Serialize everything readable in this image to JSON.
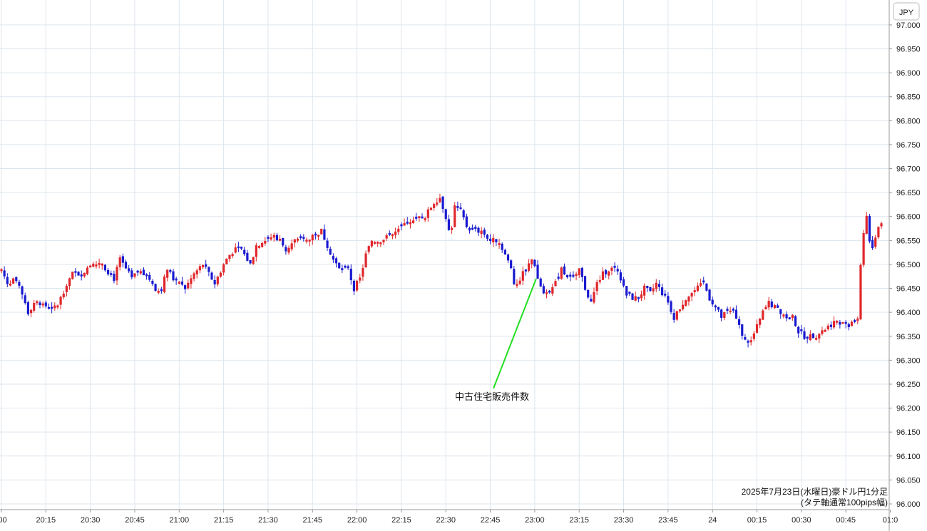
{
  "chart_data": {
    "type": "candlestick",
    "currency_label": "JPY",
    "info_line1": "2025年7月23日(水曜日)豪ドル円1分足",
    "info_line2": "(タテ軸通常100pips幅)",
    "annotation": {
      "label": "中古住宅販売件数",
      "time": "23:00",
      "price": 96.47
    },
    "ylim": [
      96.0,
      97.04
    ],
    "y_ticks": [
      97.0,
      96.95,
      96.9,
      96.85,
      96.8,
      96.75,
      96.7,
      96.65,
      96.6,
      96.55,
      96.5,
      96.45,
      96.4,
      96.35,
      96.3,
      96.25,
      96.2,
      96.15,
      96.1,
      96.05,
      96.0
    ],
    "x_ticks": [
      {
        "minute": 0,
        "label": ":00"
      },
      {
        "minute": 15,
        "label": "20:15"
      },
      {
        "minute": 30,
        "label": "20:30"
      },
      {
        "minute": 45,
        "label": "20:45"
      },
      {
        "minute": 60,
        "label": "21:00"
      },
      {
        "minute": 75,
        "label": "21:15"
      },
      {
        "minute": 90,
        "label": "21:30"
      },
      {
        "minute": 105,
        "label": "21:45"
      },
      {
        "minute": 120,
        "label": "22:00"
      },
      {
        "minute": 135,
        "label": "22:15"
      },
      {
        "minute": 150,
        "label": "22:30"
      },
      {
        "minute": 165,
        "label": "22:45"
      },
      {
        "minute": 180,
        "label": "23:00"
      },
      {
        "minute": 195,
        "label": "23:15"
      },
      {
        "minute": 210,
        "label": "23:30"
      },
      {
        "minute": 225,
        "label": "23:45"
      },
      {
        "minute": 240,
        "label": "24"
      },
      {
        "minute": 255,
        "label": "00:15"
      },
      {
        "minute": 270,
        "label": "00:30"
      },
      {
        "minute": 285,
        "label": "00:45"
      },
      {
        "minute": 300,
        "label": "01:0"
      }
    ],
    "candle_colors": {
      "up": "#e0262b",
      "down": "#1a1ad0"
    },
    "grid": true,
    "anchors": [
      [
        0,
        96.49
      ],
      [
        2,
        96.46
      ],
      [
        4,
        96.47
      ],
      [
        6,
        96.45
      ],
      [
        8,
        96.42
      ],
      [
        9,
        96.4
      ],
      [
        11,
        96.42
      ],
      [
        13,
        96.42
      ],
      [
        16,
        96.41
      ],
      [
        18,
        96.41
      ],
      [
        20,
        96.43
      ],
      [
        22,
        96.46
      ],
      [
        24,
        96.48
      ],
      [
        27,
        96.48
      ],
      [
        30,
        96.5
      ],
      [
        34,
        96.5
      ],
      [
        38,
        96.47
      ],
      [
        40,
        96.51
      ],
      [
        42,
        96.49
      ],
      [
        44,
        96.47
      ],
      [
        47,
        96.49
      ],
      [
        50,
        96.47
      ],
      [
        52,
        96.44
      ],
      [
        54,
        96.45
      ],
      [
        56,
        96.49
      ],
      [
        58,
        96.47
      ],
      [
        60,
        96.46
      ],
      [
        62,
        96.45
      ],
      [
        65,
        96.48
      ],
      [
        68,
        96.5
      ],
      [
        70,
        96.48
      ],
      [
        72,
        96.46
      ],
      [
        75,
        96.5
      ],
      [
        77,
        96.52
      ],
      [
        80,
        96.54
      ],
      [
        82,
        96.52
      ],
      [
        84,
        96.5
      ],
      [
        86,
        96.54
      ],
      [
        89,
        96.55
      ],
      [
        92,
        96.56
      ],
      [
        94,
        96.55
      ],
      [
        96,
        96.53
      ],
      [
        99,
        96.55
      ],
      [
        102,
        96.55
      ],
      [
        105,
        96.56
      ],
      [
        108,
        96.57
      ],
      [
        110,
        96.54
      ],
      [
        112,
        96.51
      ],
      [
        114,
        96.49
      ],
      [
        117,
        96.49
      ],
      [
        119,
        96.45
      ],
      [
        121,
        96.47
      ],
      [
        123,
        96.52
      ],
      [
        125,
        96.55
      ],
      [
        128,
        96.55
      ],
      [
        131,
        96.56
      ],
      [
        134,
        96.57
      ],
      [
        137,
        96.59
      ],
      [
        140,
        96.6
      ],
      [
        143,
        96.6
      ],
      [
        146,
        96.63
      ],
      [
        148,
        96.64
      ],
      [
        149,
        96.62
      ],
      [
        150,
        96.6
      ],
      [
        151,
        96.57
      ],
      [
        152,
        96.58
      ],
      [
        153,
        96.62
      ],
      [
        155,
        96.61
      ],
      [
        157,
        96.58
      ],
      [
        159,
        96.57
      ],
      [
        162,
        96.57
      ],
      [
        165,
        96.55
      ],
      [
        168,
        96.55
      ],
      [
        170,
        96.52
      ],
      [
        172,
        96.49
      ],
      [
        173,
        96.46
      ],
      [
        175,
        96.47
      ],
      [
        177,
        96.49
      ],
      [
        179,
        96.51
      ],
      [
        180,
        96.5
      ],
      [
        181,
        96.47
      ],
      [
        183,
        96.44
      ],
      [
        185,
        96.44
      ],
      [
        187,
        96.46
      ],
      [
        189,
        96.49
      ],
      [
        191,
        96.47
      ],
      [
        193,
        96.47
      ],
      [
        195,
        96.49
      ],
      [
        197,
        96.45
      ],
      [
        199,
        96.42
      ],
      [
        201,
        96.46
      ],
      [
        203,
        96.48
      ],
      [
        205,
        96.49
      ],
      [
        207,
        96.49
      ],
      [
        209,
        96.47
      ],
      [
        211,
        96.44
      ],
      [
        213,
        96.43
      ],
      [
        215,
        96.43
      ],
      [
        217,
        96.45
      ],
      [
        219,
        96.44
      ],
      [
        221,
        96.46
      ],
      [
        223,
        96.44
      ],
      [
        225,
        96.42
      ],
      [
        227,
        96.39
      ],
      [
        229,
        96.41
      ],
      [
        231,
        96.43
      ],
      [
        233,
        96.44
      ],
      [
        235,
        96.45
      ],
      [
        237,
        96.46
      ],
      [
        239,
        96.43
      ],
      [
        241,
        96.41
      ],
      [
        243,
        96.39
      ],
      [
        245,
        96.4
      ],
      [
        247,
        96.4
      ],
      [
        249,
        96.37
      ],
      [
        251,
        96.34
      ],
      [
        253,
        96.34
      ],
      [
        255,
        96.37
      ],
      [
        257,
        96.4
      ],
      [
        259,
        96.42
      ],
      [
        261,
        96.41
      ],
      [
        263,
        96.4
      ],
      [
        265,
        96.39
      ],
      [
        267,
        96.39
      ],
      [
        269,
        96.36
      ],
      [
        271,
        96.35
      ],
      [
        273,
        96.35
      ],
      [
        275,
        96.35
      ],
      [
        277,
        96.36
      ],
      [
        279,
        96.37
      ],
      [
        281,
        96.38
      ],
      [
        283,
        96.38
      ],
      [
        285,
        96.37
      ],
      [
        287,
        96.38
      ],
      [
        289,
        96.39
      ],
      [
        290,
        96.5
      ],
      [
        291,
        96.57
      ],
      [
        292,
        96.6
      ],
      [
        293,
        96.55
      ],
      [
        294,
        96.53
      ],
      [
        295,
        96.56
      ],
      [
        296,
        96.58
      ],
      [
        297,
        96.59
      ]
    ]
  }
}
